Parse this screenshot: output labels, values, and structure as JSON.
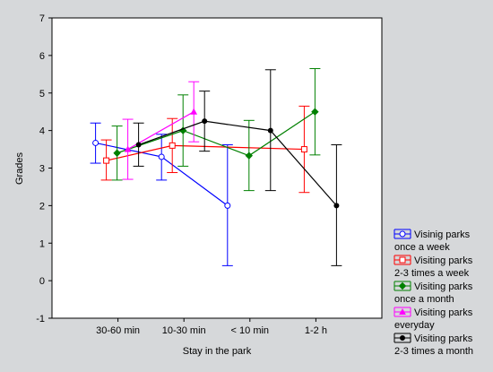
{
  "chart_data": {
    "type": "line",
    "subtype": "means-with-error-bars",
    "xlabel": "Stay in the park",
    "ylabel": "Grades",
    "categories": [
      "30-60 min",
      "10-30 min",
      "< 10 min",
      "1-2 h"
    ],
    "ylim": [
      -1,
      7
    ],
    "yticks": [
      -1,
      0,
      1,
      2,
      3,
      4,
      5,
      6,
      7
    ],
    "grid": false,
    "legend_position": "bottom-right-outside",
    "series": [
      {
        "name": "Visinig parks once a week",
        "name_lines": [
          "Visinig parks",
          "once a week"
        ],
        "color": "#0000ff",
        "marker": "circle",
        "points": [
          {
            "category": "30-60 min",
            "mean": 3.67,
            "low": 3.13,
            "high": 4.2
          },
          {
            "category": "10-30 min",
            "mean": 3.3,
            "low": 2.68,
            "high": 3.9
          },
          {
            "category": "< 10 min",
            "mean": 2.0,
            "low": 0.4,
            "high": 3.62
          }
        ]
      },
      {
        "name": "Visiting parks 2-3 times a week",
        "name_lines": [
          "Visiting parks",
          "2-3 times a week"
        ],
        "color": "#ff0000",
        "marker": "square",
        "points": [
          {
            "category": "30-60 min",
            "mean": 3.2,
            "low": 2.68,
            "high": 3.75
          },
          {
            "category": "10-30 min",
            "mean": 3.6,
            "low": 2.88,
            "high": 4.32
          },
          {
            "category": "1-2 h",
            "mean": 3.5,
            "low": 2.35,
            "high": 4.65
          }
        ]
      },
      {
        "name": "Visiting parks once a month",
        "name_lines": [
          "Visiting parks",
          "once a month"
        ],
        "color": "#008000",
        "marker": "diamond",
        "points": [
          {
            "category": "30-60 min",
            "mean": 3.4,
            "low": 2.68,
            "high": 4.12
          },
          {
            "category": "10-30 min",
            "mean": 4.0,
            "low": 3.05,
            "high": 4.95
          },
          {
            "category": "< 10 min",
            "mean": 3.33,
            "low": 2.4,
            "high": 4.27
          },
          {
            "category": "1-2 h",
            "mean": 4.5,
            "low": 3.35,
            "high": 5.65
          }
        ]
      },
      {
        "name": "Visiting parks everyday",
        "name_lines": [
          "Visiting parks",
          "everyday"
        ],
        "color": "#ff00ff",
        "marker": "triangle",
        "points": [
          {
            "category": "30-60 min",
            "mean": 3.5,
            "low": 2.7,
            "high": 4.3
          },
          {
            "category": "10-30 min",
            "mean": 4.5,
            "low": 3.7,
            "high": 5.3
          }
        ]
      },
      {
        "name": "Visiting parks 2-3 times a month",
        "name_lines": [
          "Visiting parks",
          "2-3 times a month"
        ],
        "color": "#000000",
        "marker": "dot",
        "points": [
          {
            "category": "30-60 min",
            "mean": 3.62,
            "low": 3.05,
            "high": 4.2
          },
          {
            "category": "10-30 min",
            "mean": 4.25,
            "low": 3.45,
            "high": 5.05
          },
          {
            "category": "< 10 min",
            "mean": 4.0,
            "low": 2.4,
            "high": 5.62
          },
          {
            "category": "1-2 h",
            "mean": 2.0,
            "low": 0.4,
            "high": 3.62
          }
        ]
      }
    ]
  }
}
